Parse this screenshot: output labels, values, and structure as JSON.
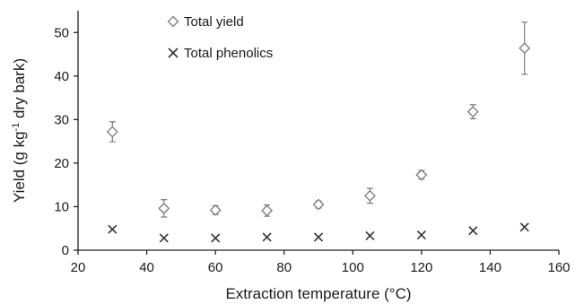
{
  "chart_data": {
    "type": "scatter",
    "xlabel": "Extraction temperature (°C)",
    "ylabel_main": "Yield (g kg",
    "ylabel_sup": "-1",
    "ylabel_tail": " dry bark)",
    "xlim": [
      20,
      160
    ],
    "ylim": [
      0,
      55
    ],
    "xticks": [
      20,
      40,
      60,
      80,
      100,
      120,
      140,
      160
    ],
    "yticks": [
      0,
      10,
      20,
      30,
      40,
      50
    ],
    "grid": false,
    "legend_position": "top-left",
    "series": [
      {
        "name": "Total yield",
        "marker": "diamond",
        "color": "#7a7a7a",
        "points": [
          {
            "x": 30,
            "y": 27.2,
            "err": 2.3
          },
          {
            "x": 45,
            "y": 9.6,
            "err": 2.0
          },
          {
            "x": 60,
            "y": 9.2,
            "err": 1.0
          },
          {
            "x": 75,
            "y": 9.1,
            "err": 1.3
          },
          {
            "x": 90,
            "y": 10.5,
            "err": 0.8
          },
          {
            "x": 105,
            "y": 12.5,
            "err": 1.7
          },
          {
            "x": 120,
            "y": 17.3,
            "err": 1.0
          },
          {
            "x": 135,
            "y": 31.8,
            "err": 1.6
          },
          {
            "x": 150,
            "y": 46.4,
            "err": 6.0
          }
        ]
      },
      {
        "name": "Total phenolics",
        "marker": "cross",
        "color": "#333333",
        "points": [
          {
            "x": 30,
            "y": 4.8
          },
          {
            "x": 45,
            "y": 2.8
          },
          {
            "x": 60,
            "y": 2.8
          },
          {
            "x": 75,
            "y": 3.0
          },
          {
            "x": 90,
            "y": 3.0
          },
          {
            "x": 105,
            "y": 3.3
          },
          {
            "x": 120,
            "y": 3.5
          },
          {
            "x": 135,
            "y": 4.5
          },
          {
            "x": 150,
            "y": 5.3
          }
        ]
      }
    ]
  }
}
